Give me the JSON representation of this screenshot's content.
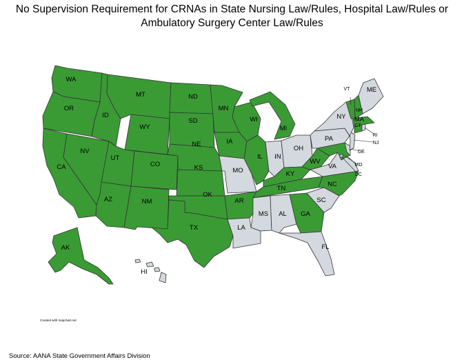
{
  "title_line1": "No Supervision Requirement for CRNAs in State Nursing Law/Rules, Hospital Law/Rules or",
  "title_line2": "Ambulatory Surgery Center Law/Rules",
  "credit": "Created with mapchart.net",
  "source": "Source:  AANA State Government Affairs Division",
  "colors": {
    "no_supervision": "#3a9b35",
    "other": "#d3d9de",
    "border": "#333333"
  },
  "states": [
    {
      "code": "WA",
      "status": "no_supervision"
    },
    {
      "code": "OR",
      "status": "no_supervision"
    },
    {
      "code": "CA",
      "status": "no_supervision"
    },
    {
      "code": "NV",
      "status": "no_supervision"
    },
    {
      "code": "ID",
      "status": "no_supervision"
    },
    {
      "code": "MT",
      "status": "no_supervision"
    },
    {
      "code": "WY",
      "status": "no_supervision"
    },
    {
      "code": "UT",
      "status": "no_supervision"
    },
    {
      "code": "AZ",
      "status": "no_supervision"
    },
    {
      "code": "CO",
      "status": "no_supervision"
    },
    {
      "code": "NM",
      "status": "no_supervision"
    },
    {
      "code": "ND",
      "status": "no_supervision"
    },
    {
      "code": "SD",
      "status": "no_supervision"
    },
    {
      "code": "NE",
      "status": "no_supervision"
    },
    {
      "code": "KS",
      "status": "no_supervision"
    },
    {
      "code": "OK",
      "status": "no_supervision"
    },
    {
      "code": "TX",
      "status": "no_supervision"
    },
    {
      "code": "MN",
      "status": "no_supervision"
    },
    {
      "code": "IA",
      "status": "no_supervision"
    },
    {
      "code": "MO",
      "status": "other"
    },
    {
      "code": "AR",
      "status": "no_supervision"
    },
    {
      "code": "LA",
      "status": "other"
    },
    {
      "code": "WI",
      "status": "no_supervision"
    },
    {
      "code": "IL",
      "status": "no_supervision"
    },
    {
      "code": "MI",
      "status": "no_supervision"
    },
    {
      "code": "IN",
      "status": "other"
    },
    {
      "code": "OH",
      "status": "other"
    },
    {
      "code": "KY",
      "status": "no_supervision"
    },
    {
      "code": "TN",
      "status": "no_supervision"
    },
    {
      "code": "MS",
      "status": "other"
    },
    {
      "code": "AL",
      "status": "other"
    },
    {
      "code": "GA",
      "status": "no_supervision"
    },
    {
      "code": "FL",
      "status": "other"
    },
    {
      "code": "SC",
      "status": "other"
    },
    {
      "code": "NC",
      "status": "no_supervision"
    },
    {
      "code": "VA",
      "status": "other"
    },
    {
      "code": "WV",
      "status": "no_supervision"
    },
    {
      "code": "MD",
      "status": "no_supervision"
    },
    {
      "code": "DE",
      "status": "other"
    },
    {
      "code": "DC",
      "status": "other"
    },
    {
      "code": "PA",
      "status": "other"
    },
    {
      "code": "NJ",
      "status": "other"
    },
    {
      "code": "NY",
      "status": "other"
    },
    {
      "code": "CT",
      "status": "no_supervision"
    },
    {
      "code": "RI",
      "status": "other"
    },
    {
      "code": "MA",
      "status": "no_supervision"
    },
    {
      "code": "VT",
      "status": "no_supervision"
    },
    {
      "code": "NH",
      "status": "no_supervision"
    },
    {
      "code": "ME",
      "status": "other"
    },
    {
      "code": "AK",
      "status": "no_supervision"
    },
    {
      "code": "HI",
      "status": "other"
    }
  ]
}
